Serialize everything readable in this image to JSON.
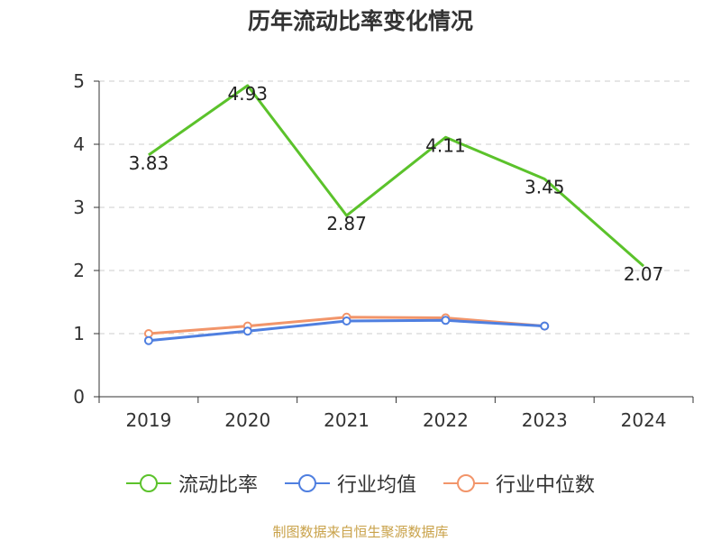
{
  "title": "历年流动比率变化情况",
  "source": "制图数据来自恒生聚源数据库",
  "chart_data": {
    "type": "line",
    "categories": [
      "2019",
      "2020",
      "2021",
      "2022",
      "2023",
      "2024"
    ],
    "ylim": [
      0,
      5
    ],
    "yticks": [
      0,
      1,
      2,
      3,
      4,
      5
    ],
    "grid": "horizontal-dashed",
    "legend_position": "bottom",
    "series": [
      {
        "name": "流动比率",
        "color": "#5bc22b",
        "values": [
          3.83,
          4.93,
          2.87,
          4.11,
          3.45,
          2.07
        ],
        "labels": true
      },
      {
        "name": "行业均值",
        "color": "#4f7fe0",
        "values": [
          0.89,
          1.04,
          1.2,
          1.21,
          1.12,
          null
        ],
        "labels": false
      },
      {
        "name": "行业中位数",
        "color": "#f2956a",
        "values": [
          1.0,
          1.12,
          1.26,
          1.25,
          1.12,
          null
        ],
        "labels": false
      }
    ]
  }
}
